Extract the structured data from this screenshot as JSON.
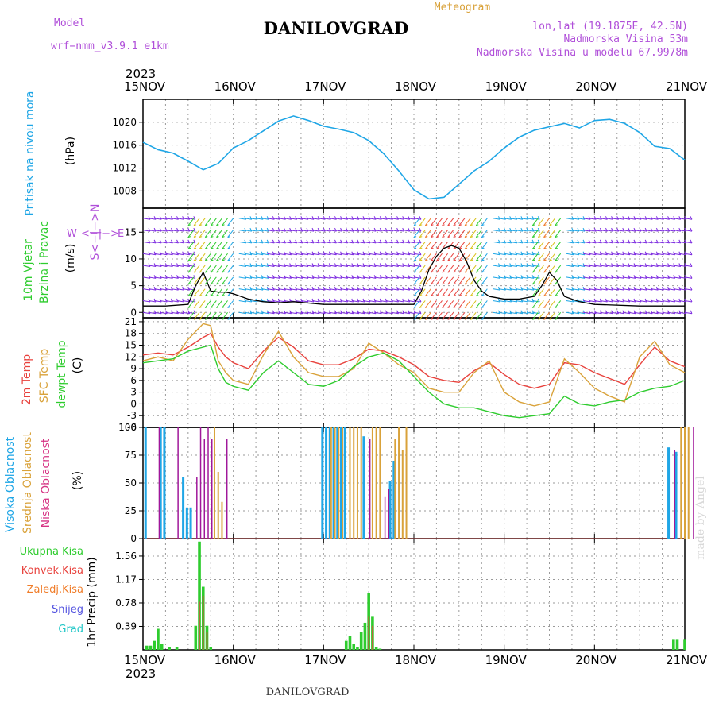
{
  "header": {
    "model_label": "Model",
    "model_name": "wrf−nmm_v3.9.1  e1km",
    "title": "DANILOVGRAD",
    "subtitle": "Meteogram",
    "lonlat": "lon,lat (19.1875E, 42.5N)",
    "altitude": "Nadmorska Visina 53m",
    "model_altitude": "Nadmorska Visina u modelu 67.9978m",
    "year_top": "2023",
    "year_bottom": "2023",
    "footer": "DANILOVGRAD",
    "credit": "made by Angel"
  },
  "colors": {
    "pressure": "#1fa6e6",
    "temp2m": "#e8423d",
    "sfc_temp": "#d9a23a",
    "dewpoint": "#2ecc2e",
    "cloud_high": "#1fa6e6",
    "cloud_mid": "#d9a23a",
    "cloud_low": "#a0179a",
    "precip_total": "#2ecc2e",
    "precip_conv": "#e8423d",
    "wind_label": "#2ecc2e",
    "purple_text": "#b04fd9"
  },
  "labels": {
    "pressure": [
      "Pritisak na nivou mora"
    ],
    "wind": [
      "10m Vjetar",
      "Brzina i Pravac"
    ],
    "temp": [
      "2m Temp",
      "SFC Temp",
      "dewpt Temp"
    ],
    "cloud": [
      "Visoka Oblacnost",
      "Srednja Oblacnost",
      "Niska Oblacnost"
    ],
    "precip": [
      "Ukupna Kisa",
      "Konvek.Kisa",
      "Zaledj.Kisa",
      "Snijeg",
      "Grad"
    ],
    "precip_unit": "1hr Precip (mm)",
    "compass": [
      "W",
      "<−|−>",
      "E",
      "S<−|−>N"
    ],
    "units": {
      "pressure": "(hPa)",
      "wind": "(m/s)",
      "temp": "(C)",
      "cloud": "(%)"
    }
  },
  "chart_data": [
    {
      "type": "line",
      "name": "pressure",
      "x": [
        0,
        4,
        8,
        12,
        16,
        20,
        24,
        28,
        32,
        36,
        40,
        44,
        48,
        52,
        56,
        60,
        64,
        68,
        72,
        76,
        80,
        84,
        88,
        92,
        96,
        100,
        104,
        108,
        112,
        116,
        120,
        124,
        128,
        132,
        136,
        140,
        144
      ],
      "values": [
        1016.5,
        1015.2,
        1014.6,
        1013.2,
        1011.7,
        1012.8,
        1015.5,
        1016.8,
        1018.5,
        1020.2,
        1021.1,
        1020.3,
        1019.3,
        1018.8,
        1018.2,
        1016.8,
        1014.5,
        1011.5,
        1008.2,
        1006.6,
        1006.9,
        1009.2,
        1011.5,
        1013.2,
        1015.5,
        1017.4,
        1018.6,
        1019.2,
        1019.8,
        1019.0,
        1020.3,
        1020.5,
        1019.8,
        1018.2,
        1015.8,
        1015.4,
        1013.4
      ],
      "ylim": [
        1005,
        1024
      ],
      "yticks": [
        1008,
        1012,
        1016,
        1020
      ]
    },
    {
      "type": "line",
      "name": "wind_speed",
      "x": [
        0,
        6,
        12,
        14,
        16,
        18,
        20,
        22,
        24,
        28,
        32,
        36,
        40,
        48,
        56,
        60,
        66,
        72,
        74,
        76,
        78,
        80,
        82,
        84,
        86,
        88,
        90,
        92,
        96,
        100,
        104,
        106,
        108,
        110,
        112,
        116,
        120,
        132,
        144
      ],
      "values": [
        1.2,
        1.2,
        1.5,
        5.0,
        7.5,
        4.0,
        3.8,
        3.8,
        3.5,
        2.5,
        2.0,
        1.8,
        2.0,
        1.5,
        1.5,
        1.5,
        1.5,
        1.5,
        4.0,
        8.0,
        10.5,
        12.0,
        12.5,
        12.0,
        9.5,
        6.0,
        4.0,
        3.0,
        2.5,
        2.5,
        3.0,
        5.0,
        7.5,
        6.0,
        3.0,
        2.0,
        1.5,
        1.2,
        1.2
      ],
      "ylim": [
        -1,
        19.5
      ],
      "yticks": [
        0,
        5,
        10,
        15
      ]
    },
    {
      "type": "line",
      "name": "temperature",
      "x": [
        0,
        4,
        8,
        12,
        16,
        18,
        20,
        22,
        24,
        28,
        32,
        36,
        40,
        44,
        48,
        52,
        56,
        60,
        64,
        68,
        72,
        76,
        80,
        84,
        88,
        92,
        96,
        100,
        104,
        108,
        112,
        116,
        120,
        124,
        128,
        132,
        136,
        140,
        144
      ],
      "series": [
        {
          "name": "2m Temp",
          "values": [
            12.5,
            13.0,
            12.5,
            14.5,
            17.0,
            18.0,
            14.5,
            12.0,
            10.5,
            9.0,
            13.5,
            17.0,
            14.5,
            11.0,
            10.0,
            10.0,
            11.5,
            14.0,
            13.5,
            12.0,
            10.0,
            7.0,
            6.0,
            5.5,
            8.5,
            10.5,
            7.5,
            5.0,
            4.0,
            5.0,
            10.5,
            10.0,
            8.0,
            6.5,
            5.0,
            10.0,
            14.5,
            11.0,
            9.5
          ]
        },
        {
          "name": "SFC Temp",
          "values": [
            11.0,
            12.0,
            11.0,
            16.5,
            20.5,
            20.0,
            11.0,
            8.0,
            6.0,
            5.0,
            12.5,
            18.5,
            12.0,
            8.0,
            7.0,
            7.0,
            9.0,
            15.5,
            13.0,
            10.0,
            8.0,
            4.0,
            3.0,
            3.0,
            8.0,
            11.0,
            3.0,
            0.5,
            -0.5,
            0.5,
            11.5,
            8.0,
            4.0,
            2.0,
            0.5,
            12.0,
            16.0,
            10.0,
            8.0
          ]
        },
        {
          "name": "dewpt Temp",
          "values": [
            10.5,
            11.0,
            11.5,
            13.5,
            14.5,
            15.0,
            9.0,
            5.5,
            4.5,
            3.5,
            8.0,
            11.0,
            8.0,
            5.0,
            4.5,
            6.0,
            9.5,
            12.0,
            13.0,
            11.0,
            7.0,
            3.0,
            0.0,
            -1.0,
            -1.0,
            -2.0,
            -3.0,
            -3.5,
            -3.0,
            -2.5,
            2.0,
            0.0,
            -0.5,
            0.5,
            1.0,
            3.0,
            4.0,
            4.5,
            6.0
          ]
        }
      ],
      "ylim": [
        -6,
        22
      ],
      "yticks": [
        -6,
        -3,
        0,
        3,
        6,
        9,
        12,
        15,
        18,
        21
      ]
    },
    {
      "type": "bar",
      "name": "cloud_cover",
      "ylim": [
        0,
        100
      ],
      "yticks": [
        0,
        25,
        50,
        75,
        100
      ],
      "series": [
        {
          "name": "Visoka Oblacnost",
          "x": [
            1,
            5,
            6,
            11,
            12,
            13,
            48,
            49,
            50,
            51,
            52,
            53,
            54,
            59,
            66,
            67,
            140,
            142
          ],
          "values": [
            100,
            100,
            100,
            55,
            28,
            28,
            100,
            100,
            100,
            100,
            100,
            100,
            100,
            92,
            52,
            70,
            82,
            78
          ]
        },
        {
          "name": "Srednja Oblacnost",
          "x": [
            19,
            20,
            21,
            50,
            51,
            52,
            53,
            55,
            56,
            57,
            58,
            61,
            62,
            63,
            67,
            68,
            69,
            70,
            143,
            144,
            145
          ],
          "values": [
            100,
            60,
            33,
            100,
            100,
            100,
            100,
            100,
            100,
            100,
            100,
            100,
            100,
            100,
            90,
            100,
            80,
            100,
            100,
            100,
            100
          ]
        },
        {
          "name": "Niska Oblacnost",
          "x": [
            4,
            9,
            14,
            15,
            16,
            17,
            18,
            22,
            60,
            64,
            65,
            141,
            146
          ],
          "values": [
            100,
            100,
            55,
            100,
            90,
            100,
            90,
            90,
            90,
            38,
            45,
            80,
            100
          ]
        }
      ]
    },
    {
      "type": "bar",
      "name": "precip",
      "ylim": [
        0,
        1.85
      ],
      "yticks": [
        0.39,
        0.78,
        1.17,
        1.56
      ],
      "series": [
        {
          "name": "Ukupna Kisa",
          "x": [
            1,
            2,
            3,
            4,
            5,
            7,
            9,
            14,
            15,
            16,
            17,
            18,
            54,
            55,
            56,
            57,
            58,
            59,
            60,
            61,
            62,
            63,
            141,
            142,
            144
          ],
          "values": [
            0.07,
            0.07,
            0.15,
            0.35,
            0.1,
            0.05,
            0.05,
            0.4,
            1.8,
            1.05,
            0.4,
            0.04,
            0.15,
            0.23,
            0.1,
            0.05,
            0.3,
            0.45,
            0.95,
            0.55,
            0.05,
            0.02,
            0.18,
            0.18,
            0.18
          ]
        },
        {
          "name": "Konvek.Kisa",
          "x": [
            15,
            16,
            17,
            60,
            61
          ],
          "values": [
            0.8,
            0.9,
            0.3,
            0.55,
            0.4
          ]
        }
      ]
    }
  ],
  "xaxis": {
    "labels": [
      "15NOV",
      "16NOV",
      "17NOV",
      "18NOV",
      "19NOV",
      "20NOV",
      "21NOV"
    ],
    "hours_per_day": 24,
    "total_hours": 144
  }
}
